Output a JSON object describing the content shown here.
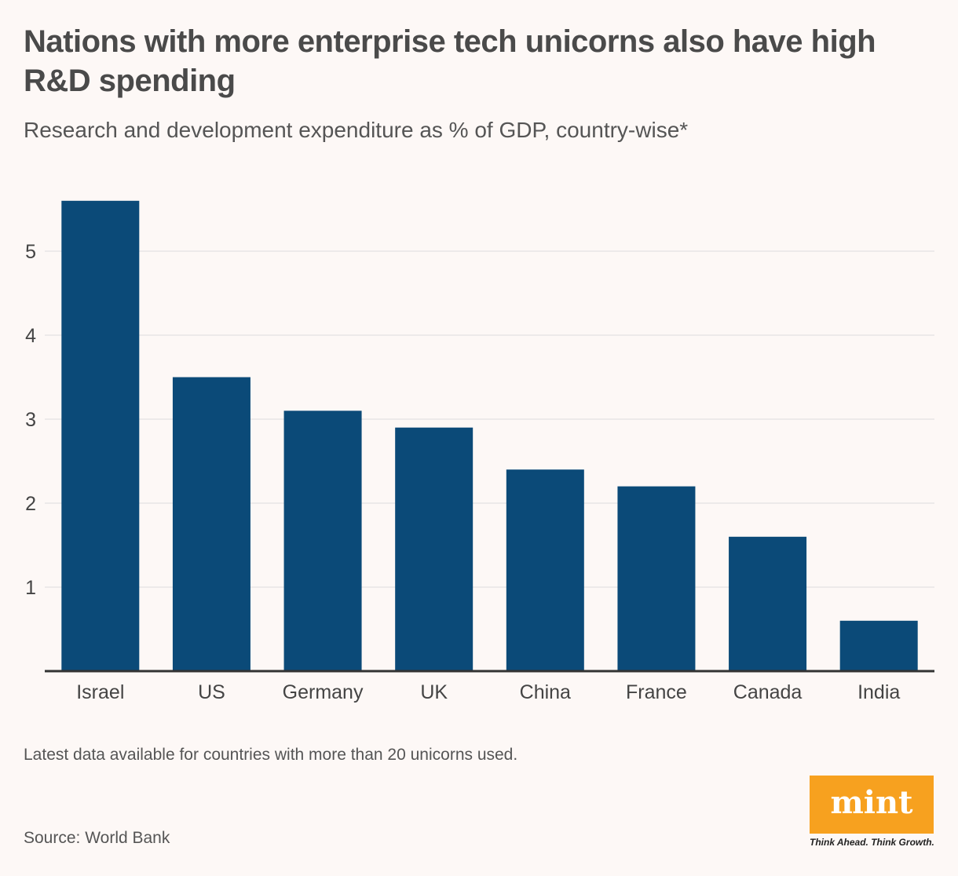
{
  "title": "Nations with more enterprise tech unicorns also have high R&D spending",
  "subtitle": "Research and development expenditure as % of GDP, country-wise*",
  "note": "Latest data available for countries with more than 20 unicorns used.",
  "source": "Source: World Bank",
  "logo": {
    "text": "mint",
    "tagline": "Think Ahead. Think Growth."
  },
  "colors": {
    "bar": "#0b4a78",
    "grid": "#dddddd",
    "axis": "#333333",
    "logo": "#f7a11f"
  },
  "chart_data": {
    "type": "bar",
    "title": "Nations with more enterprise tech unicorns also have high R&D spending",
    "xlabel": "",
    "ylabel": "R&D expenditure (% of GDP)",
    "categories": [
      "Israel",
      "US",
      "Germany",
      "UK",
      "China",
      "France",
      "Canada",
      "India"
    ],
    "values": [
      5.6,
      3.5,
      3.1,
      2.9,
      2.4,
      2.2,
      1.6,
      0.6
    ],
    "ylim": [
      0,
      5.6
    ],
    "yticks": [
      1,
      2,
      3,
      4,
      5
    ],
    "grid": true
  }
}
